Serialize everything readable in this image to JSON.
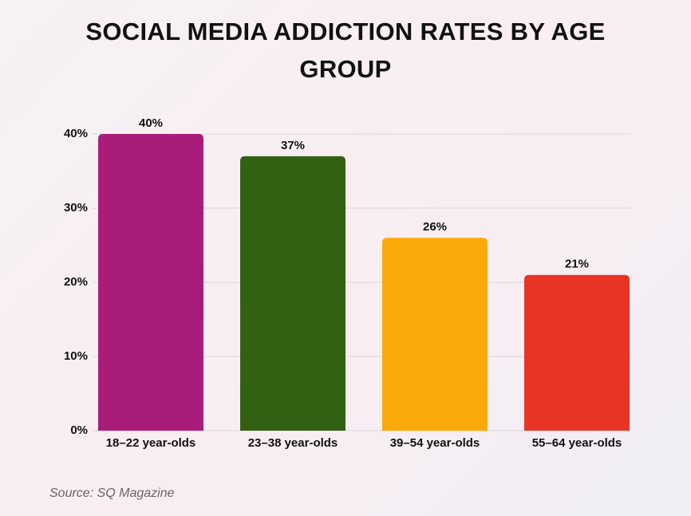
{
  "chart_data": {
    "type": "bar",
    "title": "SOCIAL MEDIA ADDICTION RATES BY AGE GROUP",
    "categories": [
      "18–22 year-olds",
      "23–38 year-olds",
      "39–54 year-olds",
      "55–64 year-olds"
    ],
    "values": [
      40,
      37,
      26,
      21
    ],
    "value_labels": [
      "40%",
      "37%",
      "26%",
      "21%"
    ],
    "colors": [
      "#a91d7a",
      "#336114",
      "#fca90a",
      "#e83425"
    ],
    "ylim": [
      0,
      40
    ],
    "yticks": [
      {
        "value": 0,
        "label": "0%"
      },
      {
        "value": 10,
        "label": "10%"
      },
      {
        "value": 20,
        "label": "20%"
      },
      {
        "value": 30,
        "label": "30%"
      },
      {
        "value": 40,
        "label": "40%"
      }
    ],
    "grid": true,
    "source": "Source: SQ Magazine"
  }
}
